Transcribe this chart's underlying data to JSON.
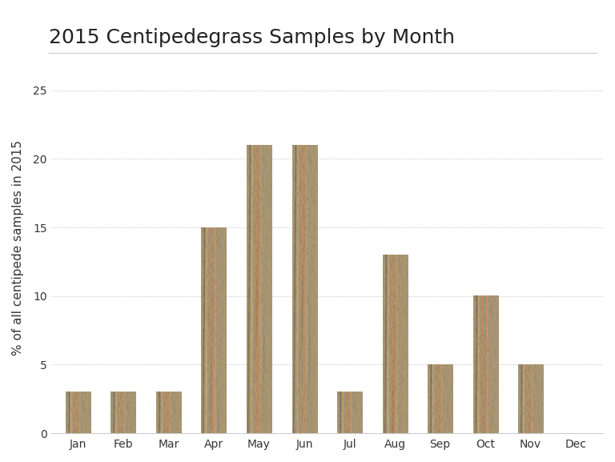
{
  "title": "2015 Centipedegrass Samples by Month",
  "categories": [
    "Jan",
    "Feb",
    "Mar",
    "Apr",
    "May",
    "Jun",
    "Jul",
    "Aug",
    "Sep",
    "Oct",
    "Nov",
    "Dec"
  ],
  "values": [
    3,
    3,
    3,
    15,
    21,
    21,
    3,
    13,
    5,
    10,
    5,
    0
  ],
  "ylabel": "% of all centipede samples in 2015",
  "ylim": [
    0,
    27
  ],
  "yticks": [
    0,
    5,
    10,
    15,
    20,
    25
  ],
  "bar_base_color_rgb": [
    168,
    150,
    115
  ],
  "background_color": "#ffffff",
  "title_fontsize": 18,
  "axis_fontsize": 11,
  "tick_fontsize": 10,
  "bar_width": 0.55
}
